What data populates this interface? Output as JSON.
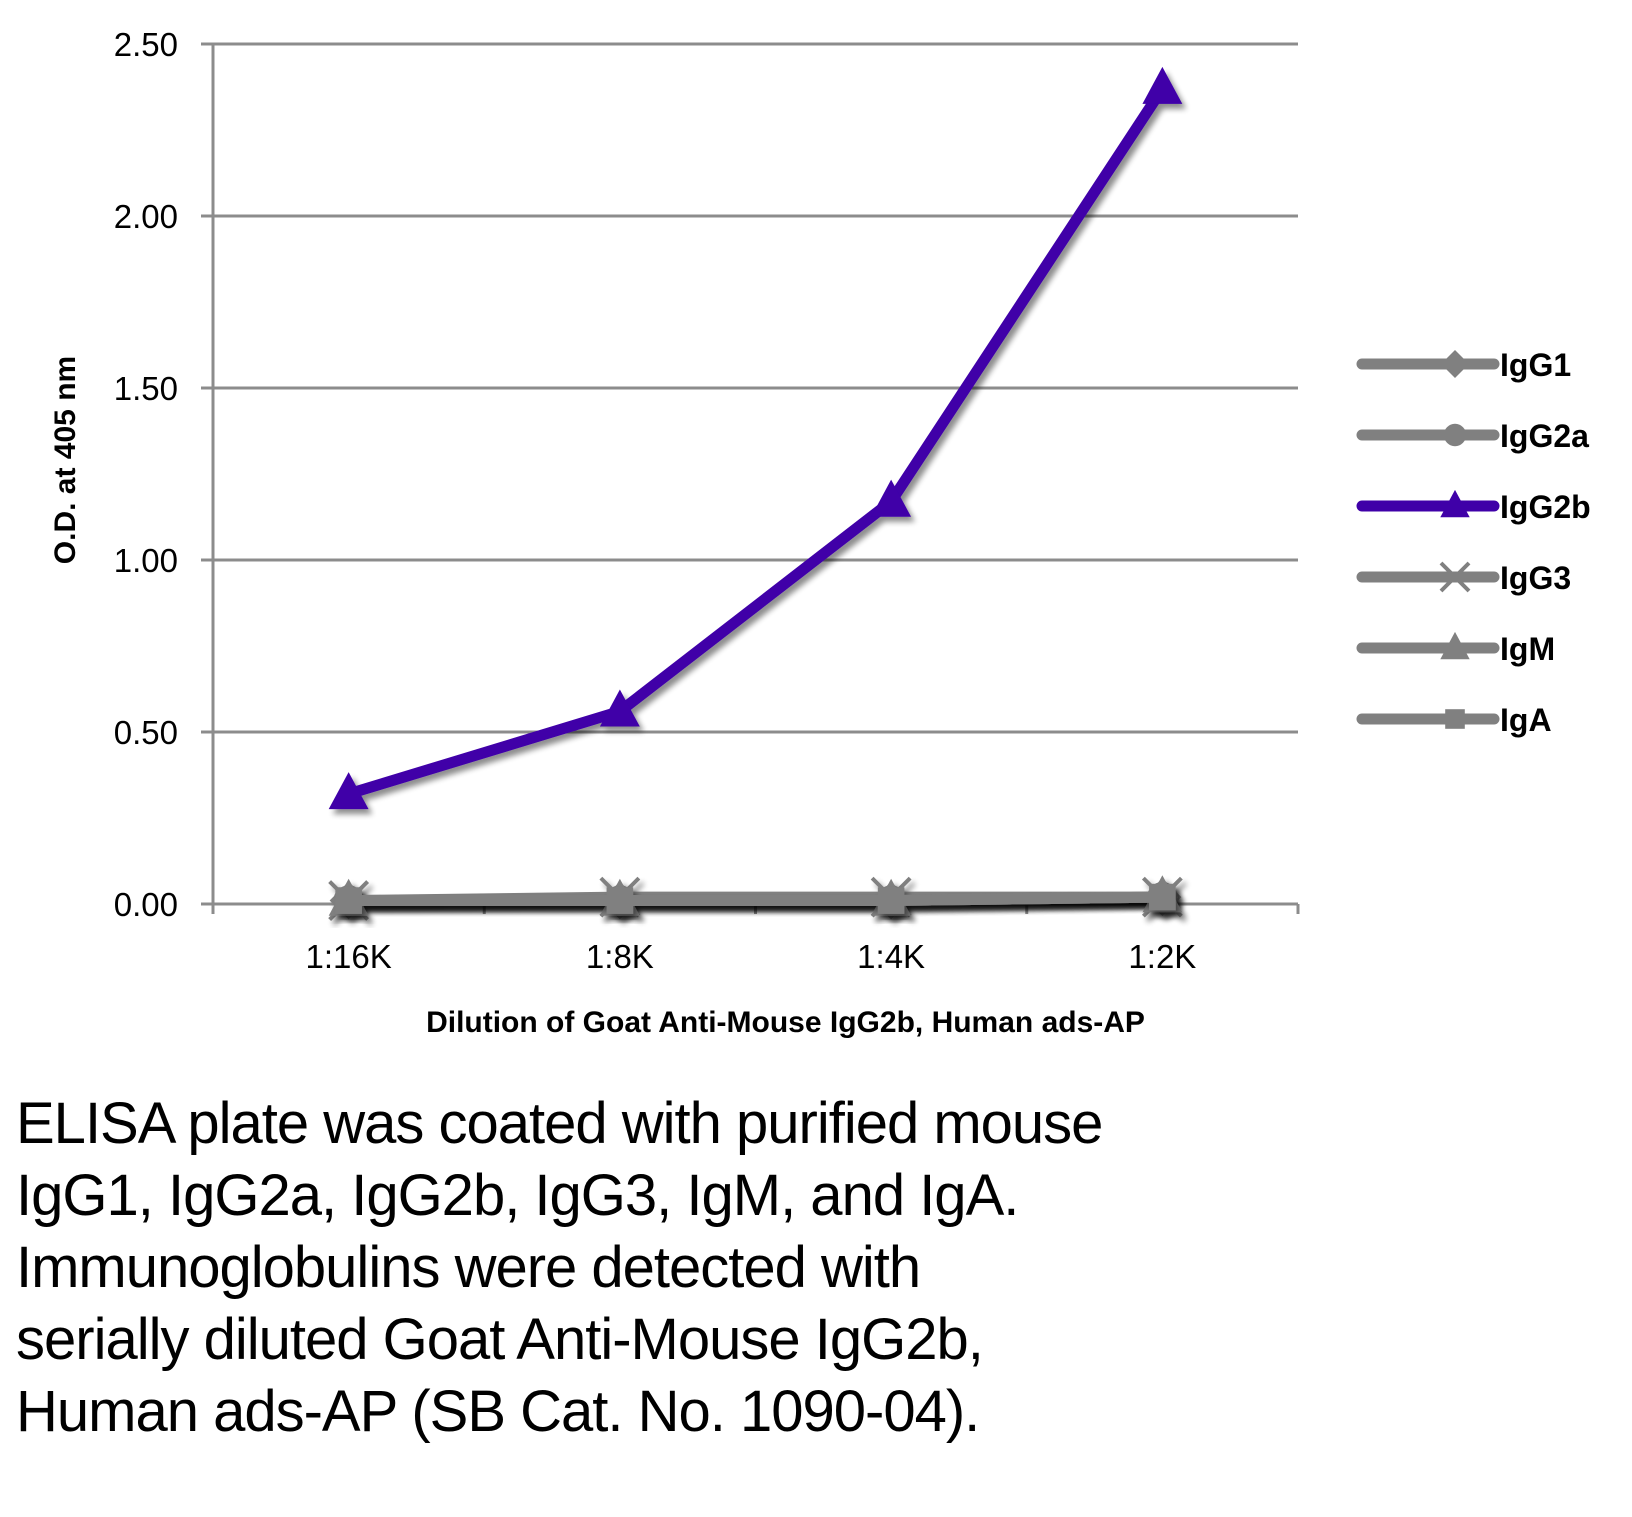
{
  "chart_data": {
    "type": "line",
    "title": "",
    "xlabel": "Dilution of Goat Anti-Mouse IgG2b, Human ads-AP",
    "ylabel": "O.D. at 405 nm",
    "categories": [
      "1:16K",
      "1:8K",
      "1:4K",
      "1:2K"
    ],
    "ylim": [
      0,
      2.5
    ],
    "yticks": [
      "0.00",
      "0.50",
      "1.00",
      "1.50",
      "2.00",
      "2.50"
    ],
    "ytick_values": [
      0,
      0.5,
      1.0,
      1.5,
      2.0,
      2.5
    ],
    "grid": true,
    "legend_position": "right",
    "series": [
      {
        "name": "IgG1",
        "marker": "diamond",
        "color": "#808080",
        "values": [
          0.01,
          0.01,
          0.01,
          0.02
        ]
      },
      {
        "name": "IgG2a",
        "marker": "circle",
        "color": "#808080",
        "values": [
          0.01,
          0.01,
          0.01,
          0.02
        ]
      },
      {
        "name": "IgG2b",
        "marker": "triangle",
        "color": "#3F00A8",
        "values": [
          0.32,
          0.56,
          1.17,
          2.37
        ]
      },
      {
        "name": "IgG3",
        "marker": "x",
        "color": "#808080",
        "values": [
          0.01,
          0.02,
          0.02,
          0.02
        ]
      },
      {
        "name": "IgM",
        "marker": "triangle",
        "color": "#808080",
        "values": [
          0.01,
          0.01,
          0.01,
          0.02
        ]
      },
      {
        "name": "IgA",
        "marker": "square",
        "color": "#808080",
        "values": [
          0.01,
          0.01,
          0.01,
          0.02
        ]
      }
    ]
  },
  "caption": {
    "lines": [
      "ELISA plate was coated with purified mouse",
      "IgG1, IgG2a, IgG2b, IgG3, IgM, and IgA.",
      "Immunoglobulins were detected with",
      "serially diluted Goat Anti-Mouse IgG2b,",
      "Human ads-AP (SB Cat. No. 1090-04)."
    ]
  }
}
